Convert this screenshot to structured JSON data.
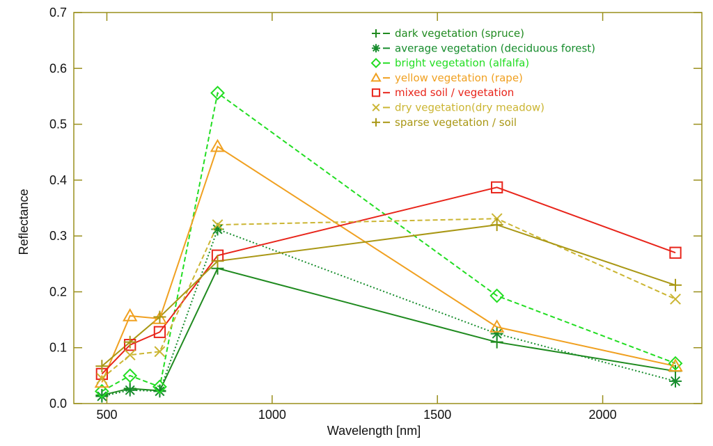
{
  "chart_data": {
    "type": "line",
    "title": "",
    "xlabel": "Wavelength [nm]",
    "ylabel": "Reflectance",
    "xlim": [
      400,
      2300
    ],
    "ylim": [
      0.0,
      0.7
    ],
    "xticks": [
      500,
      1000,
      1500,
      2000
    ],
    "yticks": [
      0.0,
      0.1,
      0.2,
      0.3,
      0.4,
      0.5,
      0.6,
      0.7
    ],
    "tick_labels_y": [
      "0.0",
      "0.1",
      "0.2",
      "0.3",
      "0.4",
      "0.5",
      "0.6",
      "0.7"
    ],
    "tick_labels_x": [
      "500",
      "1000",
      "1500",
      "2000"
    ],
    "axis_color": "#9a8f1c",
    "grid": false,
    "legend_position": "top-right",
    "x": [
      485,
      570,
      660,
      835,
      1680,
      2220
    ],
    "series": [
      {
        "name": "dark vegetation (spruce)",
        "legend_symbol": "+",
        "marker": "plus",
        "dash": "solid",
        "color": "#1f8a1f",
        "values": [
          0.015,
          0.027,
          0.023,
          0.242,
          0.11,
          0.058
        ]
      },
      {
        "name": "average vegetation (deciduous forest)",
        "legend_symbol": "*",
        "marker": "asterisk",
        "dash": "dotted",
        "color": "#168c2c",
        "values": [
          0.013,
          0.024,
          0.022,
          0.312,
          0.125,
          0.04
        ]
      },
      {
        "name": "bright vegetation (alfalfa)",
        "legend_symbol": "◇",
        "marker": "diamond",
        "dash": "dashed",
        "color": "#22dd22",
        "values": [
          0.022,
          0.05,
          0.03,
          0.556,
          0.193,
          0.072
        ]
      },
      {
        "name": "yellow vegetation (rape)",
        "legend_symbol": "△",
        "marker": "triangle",
        "dash": "solid",
        "color": "#f0a020",
        "values": [
          0.038,
          0.157,
          0.152,
          0.46,
          0.137,
          0.067
        ]
      },
      {
        "name": "mixed soil / vegetation",
        "legend_symbol": "□",
        "marker": "square",
        "dash": "solid",
        "color": "#e8241a",
        "values": [
          0.053,
          0.105,
          0.128,
          0.265,
          0.387,
          0.27
        ]
      },
      {
        "name": "dry vegetation(dry meadow)",
        "legend_symbol": "×",
        "marker": "cross",
        "dash": "dashed",
        "color": "#cbb532",
        "values": [
          0.045,
          0.087,
          0.093,
          0.32,
          0.331,
          0.187
        ]
      },
      {
        "name": "sparse vegetation / soil",
        "legend_symbol": "+",
        "marker": "plus",
        "dash": "solid",
        "color": "#a99714",
        "values": [
          0.067,
          0.11,
          0.155,
          0.255,
          0.32,
          0.212
        ]
      }
    ]
  }
}
